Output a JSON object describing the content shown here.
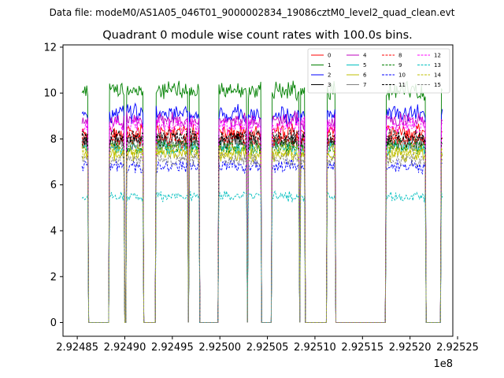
{
  "chart_data": {
    "type": "line",
    "suptitle": "Data file: modeM0/AS1A05_046T01_9000002834_19086cztM0_level2_quad_clean.evt",
    "title": "Quadrant 0 module wise count rates with 100.0s bins.",
    "xlabel": "",
    "ylabel": "",
    "x_offset_label": "1e8",
    "xlim": [
      2.924835,
      2.925245
    ],
    "ylim": [
      -0.6,
      12.1
    ],
    "x_ticks": [
      2.92485,
      2.9249,
      2.92495,
      2.925,
      2.92505,
      2.9251,
      2.92515,
      2.9252,
      2.92525
    ],
    "x_tick_labels": [
      "2.92485",
      "2.92490",
      "2.92495",
      "2.92500",
      "2.92505",
      "2.92510",
      "2.92515",
      "2.92520",
      "2.92525"
    ],
    "y_ticks": [
      0,
      2,
      4,
      6,
      8,
      10,
      12
    ],
    "y_tick_labels": [
      "0",
      "2",
      "4",
      "6",
      "8",
      "10",
      "12"
    ],
    "grid": false,
    "legend_position": "upper-right",
    "legend_columns": 4,
    "x_range": {
      "start": 2.924855,
      "end": 2.925234,
      "step": 1e-06
    },
    "x_note": "x values in units of 1e8 s (100.0 s bins)",
    "on_segments": [
      [
        2.924855,
        2.924861
      ],
      [
        2.924884,
        2.924899
      ],
      [
        2.924902,
        2.924919
      ],
      [
        2.924933,
        2.924966
      ],
      [
        2.924968,
        2.924978
      ],
      [
        2.924999,
        2.925028
      ],
      [
        2.92503,
        2.925043
      ],
      [
        2.925055,
        2.925083
      ],
      [
        2.925085,
        2.925089
      ],
      [
        2.925113,
        2.925121
      ],
      [
        2.925175,
        2.925216
      ],
      [
        2.925233,
        2.925234
      ]
    ],
    "series": [
      {
        "name": "0",
        "color": "#ff0000",
        "dash": "solid",
        "level": 8.3
      },
      {
        "name": "1",
        "color": "#008000",
        "dash": "solid",
        "level": 10.1
      },
      {
        "name": "2",
        "color": "#0000ff",
        "dash": "solid",
        "level": 9.1
      },
      {
        "name": "3",
        "color": "#000000",
        "dash": "solid",
        "level": 7.9
      },
      {
        "name": "4",
        "color": "#bf00bf",
        "dash": "solid",
        "level": 8.8
      },
      {
        "name": "5",
        "color": "#00bfbf",
        "dash": "solid",
        "level": 7.6
      },
      {
        "name": "6",
        "color": "#bfbf00",
        "dash": "solid",
        "level": 7.3
      },
      {
        "name": "7",
        "color": "#808080",
        "dash": "solid",
        "level": 7.8
      },
      {
        "name": "8",
        "color": "#ff0000",
        "dash": "dashed",
        "level": 8.0
      },
      {
        "name": "9",
        "color": "#008000",
        "dash": "dashed",
        "level": 7.7
      },
      {
        "name": "10",
        "color": "#0000ff",
        "dash": "dashed",
        "level": 6.8
      },
      {
        "name": "11",
        "color": "#000000",
        "dash": "dashed",
        "level": 8.1
      },
      {
        "name": "12",
        "color": "#ff00ff",
        "dash": "dashed",
        "level": 8.6
      },
      {
        "name": "13",
        "color": "#00bfbf",
        "dash": "dashed",
        "level": 5.5
      },
      {
        "name": "14",
        "color": "#bfbf00",
        "dash": "dashed",
        "level": 7.5
      },
      {
        "name": "15",
        "color": "#808080",
        "dash": "dashed",
        "level": 7.1
      }
    ]
  }
}
